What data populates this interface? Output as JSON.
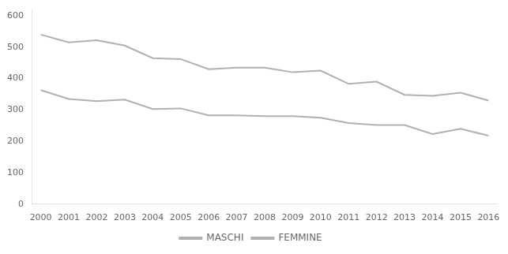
{
  "chart_data": {
    "type": "line",
    "x": [
      2000,
      2001,
      2002,
      2003,
      2004,
      2005,
      2006,
      2007,
      2008,
      2009,
      2010,
      2011,
      2012,
      2013,
      2014,
      2015,
      2016
    ],
    "series": [
      {
        "name": "MASCHI",
        "color": "#b0b0b0",
        "values": [
          540,
          515,
          522,
          505,
          465,
          462,
          430,
          435,
          435,
          420,
          425,
          383,
          390,
          348,
          345,
          355,
          330
        ]
      },
      {
        "name": "FEMMINE",
        "color": "#b0b0b0",
        "values": [
          363,
          335,
          328,
          333,
          303,
          305,
          283,
          283,
          280,
          280,
          275,
          258,
          252,
          252,
          223,
          240,
          218
        ]
      }
    ],
    "xlim": [
      1999.7,
      2016.3
    ],
    "xticks": [
      2000,
      2001,
      2002,
      2003,
      2004,
      2005,
      2006,
      2007,
      2008,
      2009,
      2010,
      2011,
      2012,
      2013,
      2014,
      2015,
      2016
    ],
    "ylim": [
      0,
      620
    ],
    "yticks": [
      0,
      100,
      200,
      300,
      400,
      500,
      600
    ],
    "grid": false,
    "legend": "bottom"
  }
}
